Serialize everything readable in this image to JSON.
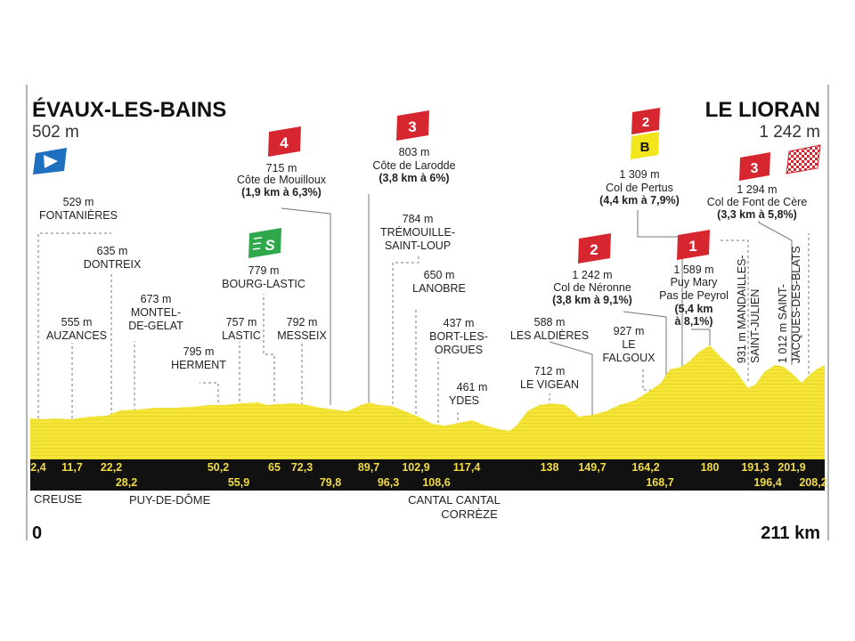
{
  "colors": {
    "yellow_profile": "#f5e537",
    "km_band": "#111111",
    "km_text": "#f2dc45",
    "cat_red": "#d6262f",
    "sprint_green": "#2fa84b",
    "bonus_yellow": "#f3e51b",
    "start_blue": "#1f6fc1",
    "frame_gray": "#9a9a9a"
  },
  "start": {
    "name": "ÉVAUX-LES-BAINS",
    "alt": "502 m",
    "icon": "start-flag-icon"
  },
  "finish": {
    "name": "LE LIORAN",
    "alt": "1 242 m",
    "icon": "finish-checkered-flag-icon"
  },
  "distance": {
    "start": "0",
    "end": "211 km"
  },
  "regions": [
    "CREUSE",
    "PUY-DE-DÔME",
    "CANTAL CANTAL",
    "CORRÈZE"
  ],
  "km_markers_top": [
    "2,4",
    "11,7",
    "22,2",
    "50,2",
    "65",
    "72,3",
    "89,7",
    "102,9",
    "117,4",
    "138",
    "149,7",
    "164,2",
    "180",
    "191,3",
    "201,9"
  ],
  "km_markers_bottom": [
    "28,2",
    "55,9",
    "79,8",
    "96,3",
    "108,6",
    "168,7",
    "196,4",
    "208,2"
  ],
  "places": [
    {
      "alt": "529 m",
      "name": "FONTANIÈRES"
    },
    {
      "alt": "555 m",
      "name": "AUZANCES"
    },
    {
      "alt": "635 m",
      "name": "DONTREIX"
    },
    {
      "alt": "673 m",
      "name1": "MONTEL-",
      "name2": "DE-GELAT"
    },
    {
      "alt": "795 m",
      "name": "HERMENT"
    },
    {
      "alt": "757 m",
      "name": "LASTIC"
    },
    {
      "alt": "779 m",
      "name": "BOURG-LASTIC"
    },
    {
      "alt": "792 m",
      "name": "MESSEIX"
    },
    {
      "alt": "784 m",
      "name1": "TRÉMOUILLE-",
      "name2": "SAINT-LOUP"
    },
    {
      "alt": "650 m",
      "name": "LANOBRE"
    },
    {
      "alt": "437 m",
      "name1": "BORT-LES-",
      "name2": "ORGUES"
    },
    {
      "alt": "461 m",
      "name": "YDES"
    },
    {
      "alt": "588 m",
      "name": "LES ALDIÈRES"
    },
    {
      "alt": "712 m",
      "name": "LE VIGEAN"
    },
    {
      "alt": "927 m",
      "name1": "LE",
      "name2": "FALGOUX"
    },
    {
      "name1": "931 m MANDAILLES-",
      "name2": "SAINT-JULIEN"
    },
    {
      "name1": "1 012 m SAINT-",
      "name2": "JACQUES-DES-BLATS"
    }
  ],
  "climbs": [
    {
      "cat": "4",
      "alt": "715 m",
      "name": "Côte de Mouilloux",
      "stats": "(1,9 km à 6,3%)"
    },
    {
      "cat": "3",
      "alt": "803 m",
      "name": "Côte de Larodde",
      "stats": "(3,8 km à 6%)"
    },
    {
      "cat": "2",
      "alt": "1 242 m",
      "name": "Col de Néronne",
      "stats": "(3,8 km à 9,1%)"
    },
    {
      "cat": "2",
      "bonus": "B",
      "alt": "1 309 m",
      "name": "Col de Pertus",
      "stats": "(4,4 km à 7,9%)"
    },
    {
      "cat": "1",
      "alt": "1 589 m",
      "name1": "Puy Mary",
      "name2": "Pas de Peyrol",
      "stats1": "(5,4 km",
      "stats2": "à 8,1%)"
    },
    {
      "cat": "3",
      "alt": "1 294 m",
      "name": "Col de Font de Cère",
      "stats": "(3,3 km à 5,8%)"
    }
  ],
  "sprint": {
    "icon": "sprint-s-icon",
    "label": "S"
  }
}
